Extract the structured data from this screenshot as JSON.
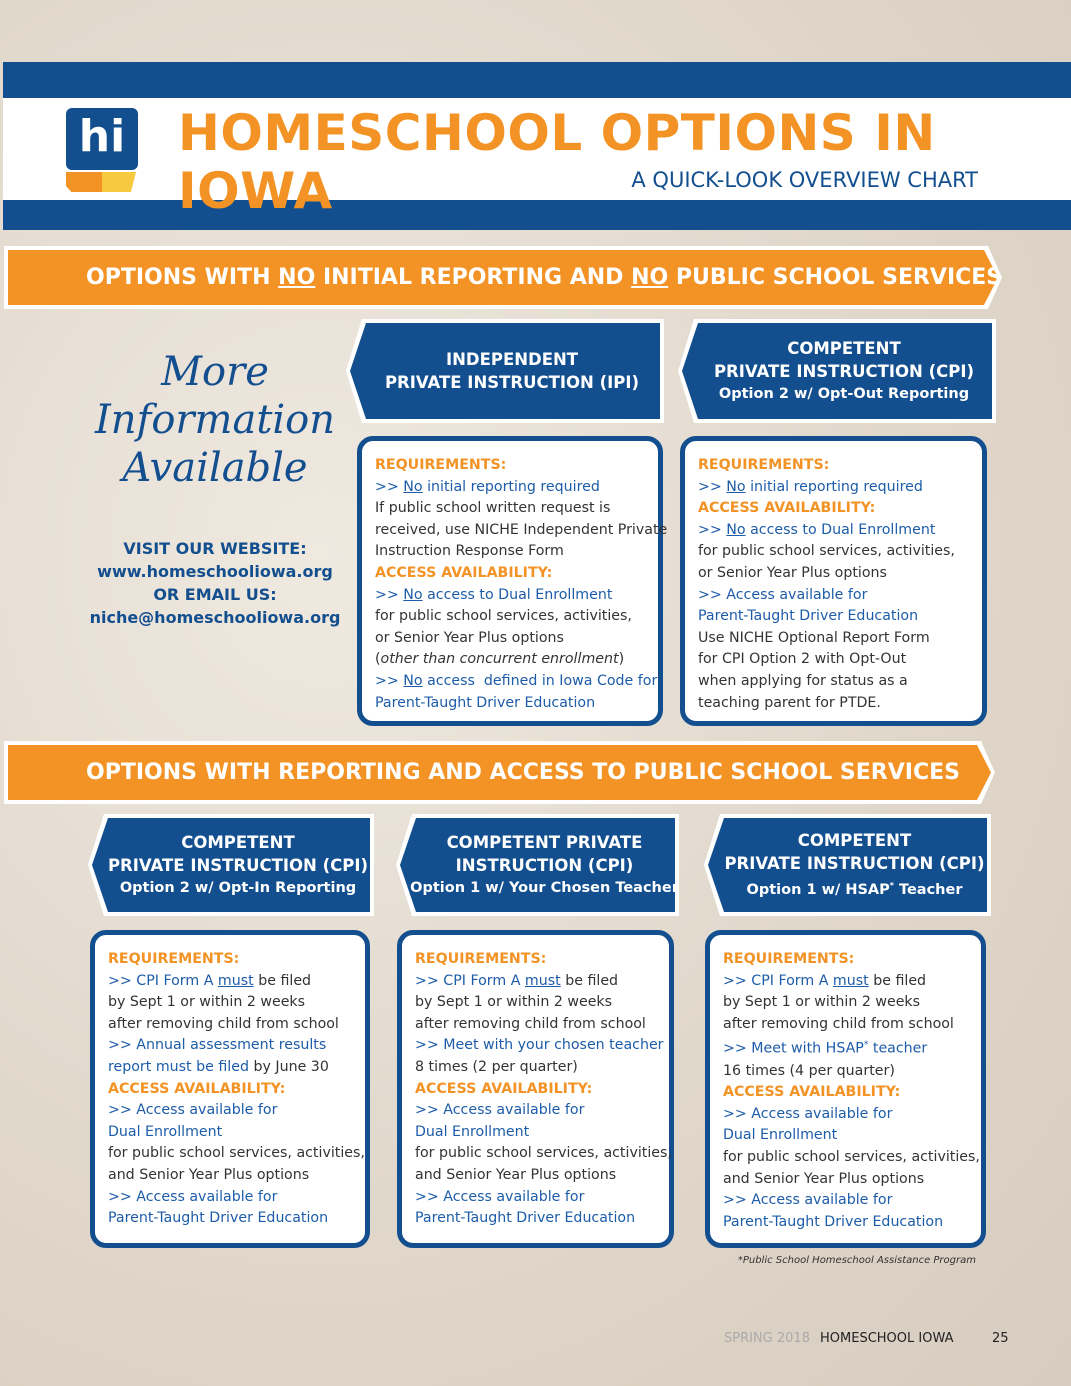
{
  "header": {
    "logo": "hi",
    "title": "HOMESCHOOL OPTIONS IN IOWA",
    "subtitle": "A QUICK-LOOK OVERVIEW CHART"
  },
  "section1": {
    "banner": [
      "OPTIONS WITH ",
      "NO",
      " INITIAL REPORTING AND ",
      "NO",
      " PUBLIC SCHOOL SERVICES"
    ],
    "sidebar": {
      "heading": [
        "More",
        "Information",
        "Available"
      ],
      "contact": [
        "VISIT OUR WEBSITE:",
        "www.homeschooliowa.org",
        "OR EMAIL US:",
        "niche@homeschooliowa.org"
      ]
    },
    "options": [
      {
        "title": [
          "INDEPENDENT",
          "PRIVATE INSTRUCTION (IPI)"
        ],
        "lines": [
          [
            "REQUIREMENTS:"
          ],
          [
            ">> ",
            "No",
            " initial reporting required"
          ],
          [
            "If public school written request is"
          ],
          [
            "received, use NICHE Independent Private"
          ],
          [
            "Instruction Response Form"
          ],
          [
            "ACCESS AVAILABILITY:"
          ],
          [
            ">> ",
            "No",
            " access to Dual Enrollment"
          ],
          [
            "for public school services, activities,"
          ],
          [
            "or Senior Year Plus options"
          ],
          [
            "(",
            "other than concurrent enrollment",
            ")"
          ],
          [
            ">> ",
            "No",
            " access  defined in Iowa Code for"
          ],
          [
            "Parent-Taught Driver Education"
          ]
        ]
      },
      {
        "title": [
          "COMPETENT",
          "PRIVATE INSTRUCTION (CPI)"
        ],
        "subtitle": [
          "Option 2 w/ Opt-Out Reporting"
        ],
        "lines": [
          [
            "REQUIREMENTS:"
          ],
          [
            ">> ",
            "No",
            " initial reporting required"
          ],
          [
            "ACCESS AVAILABILITY:"
          ],
          [
            ">> ",
            "No",
            " access to Dual Enrollment"
          ],
          [
            "for public school services, activities,"
          ],
          [
            "or Senior Year Plus options"
          ],
          [
            ">> Access available for"
          ],
          [
            "Parent-Taught Driver Education"
          ],
          [
            "Use NICHE Optional Report Form"
          ],
          [
            "for CPI Option 2 with Opt-Out"
          ],
          [
            "when applying for status as a"
          ],
          [
            "teaching parent for PTDE."
          ]
        ]
      }
    ]
  },
  "section2": {
    "banner": [
      "OPTIONS WITH REPORTING AND ACCESS TO PUBLIC SCHOOL SERVICES"
    ],
    "options": [
      {
        "title": [
          "COMPETENT",
          "PRIVATE INSTRUCTION (CPI)"
        ],
        "subtitle": [
          "Option 2 w/ Opt-In Reporting"
        ],
        "lines": [
          [
            "REQUIREMENTS:"
          ],
          [
            ">> CPI Form A ",
            "must",
            " be filed"
          ],
          [
            "by Sept 1 or within 2 weeks"
          ],
          [
            "after removing child from school"
          ],
          [
            ">> Annual assessment results"
          ],
          [
            "report must be filed",
            " by June 30"
          ],
          [
            "ACCESS AVAILABILITY:"
          ],
          [
            ">> Access available for"
          ],
          [
            "Dual Enrollment"
          ],
          [
            "for public school services, activities,"
          ],
          [
            "and Senior Year Plus options"
          ],
          [
            ">> Access available for"
          ],
          [
            "Parent-Taught Driver Education"
          ]
        ]
      },
      {
        "title": [
          "COMPETENT PRIVATE",
          "INSTRUCTION (CPI)"
        ],
        "subtitle": [
          "Option 1 w/ Your Chosen Teacher"
        ],
        "lines": [
          [
            "REQUIREMENTS:"
          ],
          [
            ">> CPI Form A ",
            "must",
            " be filed"
          ],
          [
            "by Sept 1 or within 2 weeks"
          ],
          [
            "after removing child from school"
          ],
          [
            ">> Meet with your chosen teacher"
          ],
          [
            "8 times (2 per quarter)"
          ],
          [
            "ACCESS AVAILABILITY:"
          ],
          [
            ">> Access available for"
          ],
          [
            "Dual Enrollment"
          ],
          [
            "for public school services, activities,"
          ],
          [
            "and Senior Year Plus options"
          ],
          [
            ">> Access available for"
          ],
          [
            "Parent-Taught Driver Education"
          ]
        ]
      },
      {
        "title": [
          "COMPETENT",
          "PRIVATE INSTRUCTION (CPI)"
        ],
        "subtitle": [
          "Option 1 w/ HSAP",
          "*",
          " Teacher"
        ],
        "lines": [
          [
            "REQUIREMENTS:"
          ],
          [
            ">> CPI Form A ",
            "must",
            " be filed"
          ],
          [
            "by Sept 1 or within 2 weeks"
          ],
          [
            "after removing child from school"
          ],
          [
            ">> Meet with HSAP",
            "*",
            " teacher"
          ],
          [
            "16 times (4 per quarter)"
          ],
          [
            "ACCESS AVAILABILITY:"
          ],
          [
            ">> Access available for"
          ],
          [
            "Dual Enrollment"
          ],
          [
            "for public school services, activities,"
          ],
          [
            "and Senior Year Plus options"
          ],
          [
            ">> Access available for"
          ],
          [
            "Parent-Taught Driver Education"
          ]
        ]
      }
    ],
    "footnote": "*Public School Homeschool Assistance Program"
  },
  "footer": {
    "issue": "SPRING 2018",
    "magazine": "HOMESCHOOL IOWA",
    "page": "25"
  }
}
